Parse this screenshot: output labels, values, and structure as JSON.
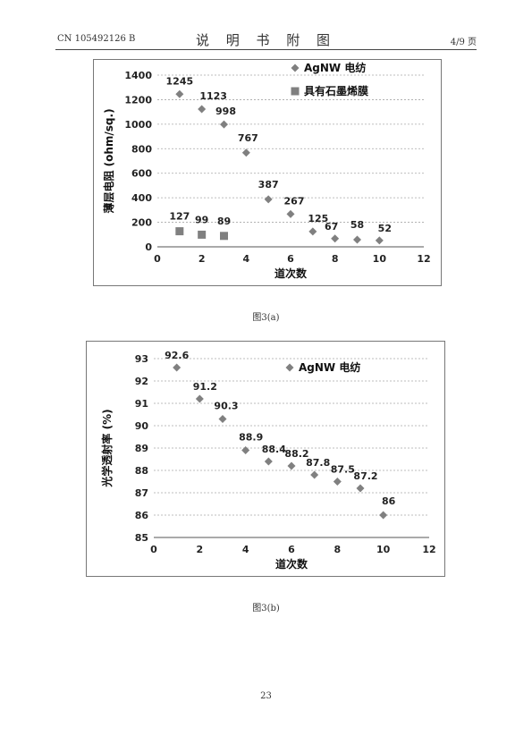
{
  "header": {
    "patent_number": "CN 105492126 B",
    "title": "说 明 书 附 图",
    "page_info": "4/9 页"
  },
  "figures": [
    {
      "caption": "图3(a)"
    },
    {
      "caption": "图3(b)"
    }
  ],
  "page_number": "23",
  "colors": {
    "marker": "#808080",
    "gridline": "#a8a8a8",
    "frame": "#777777"
  },
  "chart_data": [
    {
      "type": "scatter",
      "title": "",
      "xlabel": "道次数",
      "ylabel": "薄层电阻 (ohm/sq.)",
      "xlim": [
        0,
        12
      ],
      "ylim": [
        0,
        1400
      ],
      "xticks": [
        0,
        2,
        4,
        6,
        8,
        10,
        12
      ],
      "yticks": [
        0,
        200,
        400,
        600,
        800,
        1000,
        1200,
        1400
      ],
      "grid": "horizontal dashed",
      "legend_position": "top-right",
      "series": [
        {
          "name": "AgNW 电纺",
          "marker": "diamond",
          "x": [
            1,
            2,
            3,
            4,
            5,
            6,
            7,
            8,
            9,
            10
          ],
          "y": [
            1245,
            1123,
            998,
            767,
            387,
            267,
            125,
            67,
            58,
            52
          ],
          "labels": [
            "1245",
            "1123",
            "998",
            "767",
            "387",
            "267",
            "125",
            "67",
            "58",
            "52"
          ]
        },
        {
          "name": "具有石墨烯膜",
          "marker": "square",
          "x": [
            1,
            2,
            3
          ],
          "y": [
            127,
            99,
            89
          ],
          "labels": [
            "127",
            "99",
            "89"
          ]
        }
      ]
    },
    {
      "type": "scatter",
      "title": "",
      "xlabel": "道次数",
      "ylabel": "光学透射率 (%)",
      "xlim": [
        0,
        12
      ],
      "ylim": [
        85,
        93
      ],
      "xticks": [
        0,
        2,
        4,
        6,
        8,
        10,
        12
      ],
      "yticks": [
        85,
        86,
        87,
        88,
        89,
        90,
        91,
        92,
        93
      ],
      "grid": "horizontal dashed",
      "legend_position": "top-right",
      "series": [
        {
          "name": "AgNW 电纺",
          "marker": "diamond",
          "x": [
            1,
            2,
            3,
            4,
            5,
            6,
            7,
            8,
            9,
            10
          ],
          "y": [
            92.6,
            91.2,
            90.3,
            88.9,
            88.4,
            88.2,
            87.8,
            87.5,
            87.2,
            86
          ],
          "labels": [
            "92.6",
            "91.2",
            "90.3",
            "88.9",
            "88.4",
            "88.2",
            "87.8",
            "87.5",
            "87.2",
            "86"
          ]
        }
      ]
    }
  ]
}
